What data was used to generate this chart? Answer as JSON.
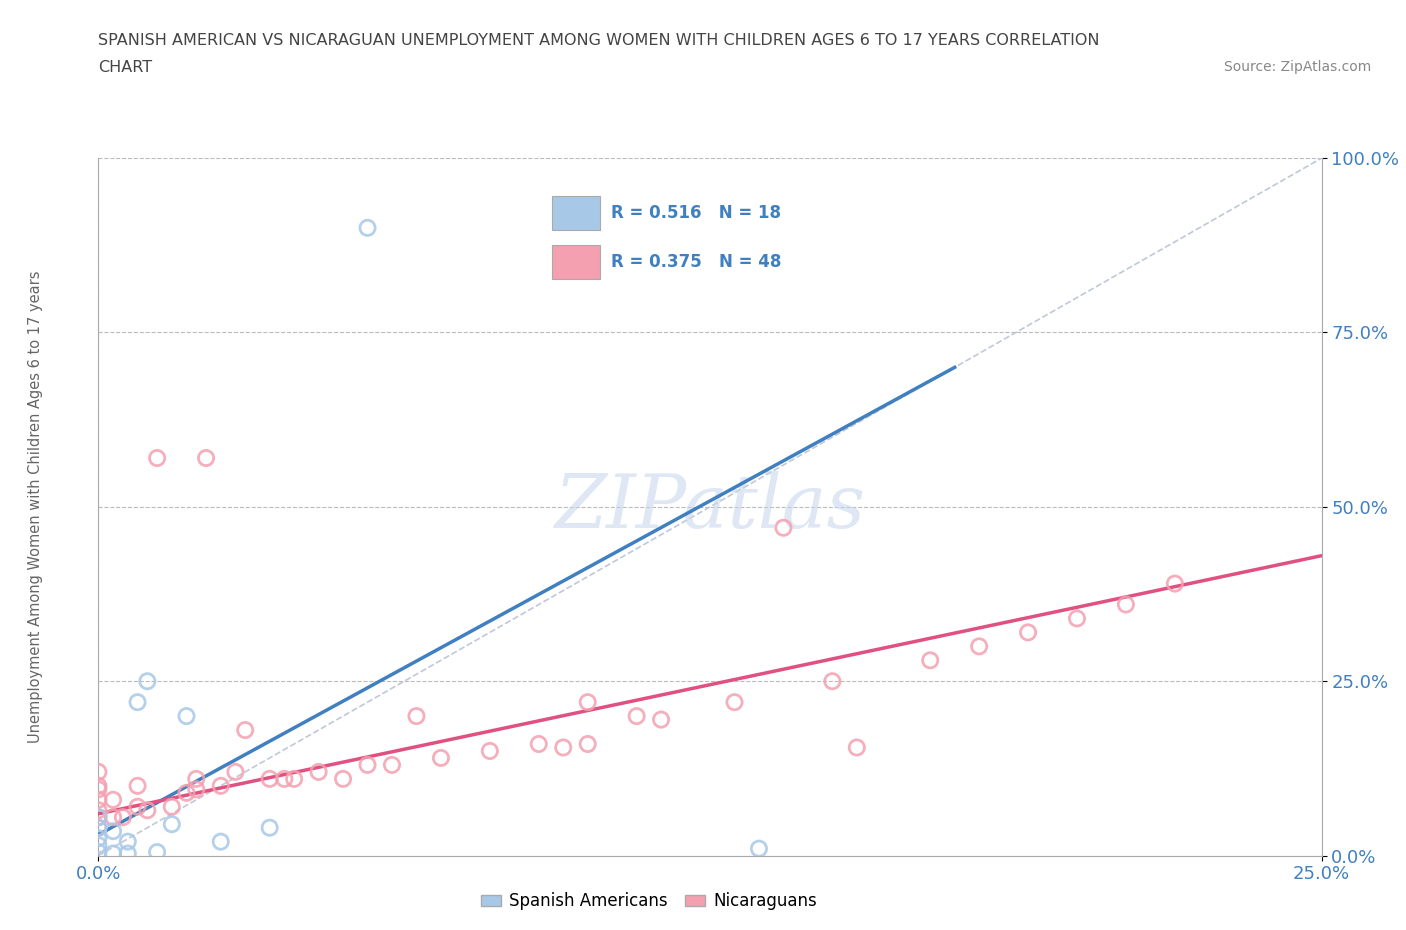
{
  "title_line1": "SPANISH AMERICAN VS NICARAGUAN UNEMPLOYMENT AMONG WOMEN WITH CHILDREN AGES 6 TO 17 YEARS CORRELATION",
  "title_line2": "CHART",
  "source_text": "Source: ZipAtlas.com",
  "ylabel": "Unemployment Among Women with Children Ages 6 to 17 years",
  "xlim": [
    0.0,
    0.25
  ],
  "ylim": [
    0.0,
    1.0
  ],
  "xtick_labels": [
    "0.0%",
    "25.0%"
  ],
  "ytick_labels": [
    "0.0%",
    "25.0%",
    "50.0%",
    "75.0%",
    "100.0%"
  ],
  "ytick_values": [
    0.0,
    0.25,
    0.5,
    0.75,
    1.0
  ],
  "xtick_values": [
    0.0,
    0.25
  ],
  "grid_color": "#bbbbbb",
  "background_color": "#ffffff",
  "legend_R1": "0.516",
  "legend_N1": "18",
  "legend_R2": "0.375",
  "legend_N2": "48",
  "blue_scatter_color": "#a8c8e8",
  "pink_scatter_color": "#f4a0b0",
  "blue_line_color": "#4080c0",
  "pink_line_color": "#e05080",
  "diag_line_color": "#c0c8d8",
  "axis_label_color": "#4080c0",
  "title_color": "#444444",
  "source_color": "#888888",
  "ylabel_color": "#666666",
  "spanish_americans_x": [
    0.0,
    0.0,
    0.0,
    0.0,
    0.0,
    0.003,
    0.003,
    0.006,
    0.006,
    0.008,
    0.01,
    0.012,
    0.015,
    0.018,
    0.025,
    0.035,
    0.055,
    0.135
  ],
  "spanish_americans_y": [
    0.005,
    0.015,
    0.025,
    0.04,
    0.055,
    0.003,
    0.035,
    0.003,
    0.02,
    0.22,
    0.25,
    0.005,
    0.045,
    0.2,
    0.02,
    0.04,
    0.9,
    0.01
  ],
  "nicaraguans_x": [
    0.0,
    0.0,
    0.0,
    0.0,
    0.0,
    0.0,
    0.0,
    0.003,
    0.003,
    0.005,
    0.008,
    0.008,
    0.01,
    0.012,
    0.015,
    0.018,
    0.02,
    0.02,
    0.022,
    0.025,
    0.028,
    0.03,
    0.035,
    0.038,
    0.04,
    0.045,
    0.05,
    0.055,
    0.06,
    0.065,
    0.07,
    0.08,
    0.09,
    0.095,
    0.1,
    0.1,
    0.11,
    0.115,
    0.13,
    0.14,
    0.15,
    0.155,
    0.17,
    0.18,
    0.19,
    0.2,
    0.21,
    0.22
  ],
  "nicaraguans_y": [
    0.04,
    0.055,
    0.065,
    0.08,
    0.095,
    0.1,
    0.12,
    0.055,
    0.08,
    0.055,
    0.07,
    0.1,
    0.065,
    0.57,
    0.07,
    0.09,
    0.095,
    0.11,
    0.57,
    0.1,
    0.12,
    0.18,
    0.11,
    0.11,
    0.11,
    0.12,
    0.11,
    0.13,
    0.13,
    0.2,
    0.14,
    0.15,
    0.16,
    0.155,
    0.16,
    0.22,
    0.2,
    0.195,
    0.22,
    0.47,
    0.25,
    0.155,
    0.28,
    0.3,
    0.32,
    0.34,
    0.36,
    0.39
  ],
  "blue_trendline_x": [
    0.0,
    0.175
  ],
  "blue_trendline_y": [
    0.03,
    0.7
  ],
  "pink_trendline_x": [
    0.0,
    0.25
  ],
  "pink_trendline_y": [
    0.06,
    0.43
  ],
  "diag_line_x": [
    0.0,
    0.25
  ],
  "diag_line_y": [
    0.0,
    1.0
  ]
}
